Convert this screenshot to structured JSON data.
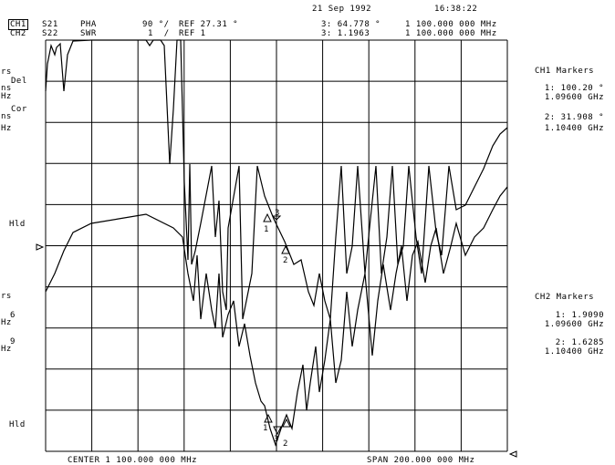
{
  "header": {
    "date": "21 Sep 1992",
    "time": "16:38:22"
  },
  "channels": [
    {
      "label": "CH1",
      "param": "S21",
      "format": "PHA",
      "scale": "90 °/",
      "ref": "REF 27.31 °",
      "marker_readout": "3: 64.778 °",
      "marker_freq": "1 100.000 000 MHz",
      "active": true
    },
    {
      "label": "CH2",
      "param": "S22",
      "format": "SWR",
      "scale": "1  /",
      "ref": "REF 1",
      "marker_readout": "3: 1.1963",
      "marker_freq": "1 100.000 000 MHz",
      "active": false
    }
  ],
  "left_annotations": {
    "ch1": [
      "rs",
      "Del",
      "ns",
      "Hz",
      "Cor",
      "ns",
      "Hz"
    ],
    "ch1_hld": "Hld",
    "ch2": [
      "rs",
      "6",
      "Hz",
      "9",
      "Hz"
    ],
    "ch2_hld": "Hld"
  },
  "ch1_markers": {
    "title": "CH1 Markers",
    "items": [
      {
        "value": "1: 100.20 °",
        "freq": "1.09600 GHz"
      },
      {
        "value": "2: 31.908 °",
        "freq": "1.10400 GHz"
      }
    ]
  },
  "ch2_markers": {
    "title": "CH2 Markers",
    "items": [
      {
        "value": "1: 1.9090",
        "freq": "1.09600 GHz"
      },
      {
        "value": "2: 1.6285",
        "freq": "1.10400 GHz"
      }
    ]
  },
  "footer": {
    "center": "CENTER 1 100.000 000 MHz",
    "span": "SPAN 200.000 000 MHz"
  },
  "trace_labels": [
    "1",
    "2",
    "3",
    "1",
    "2",
    "3"
  ]
}
